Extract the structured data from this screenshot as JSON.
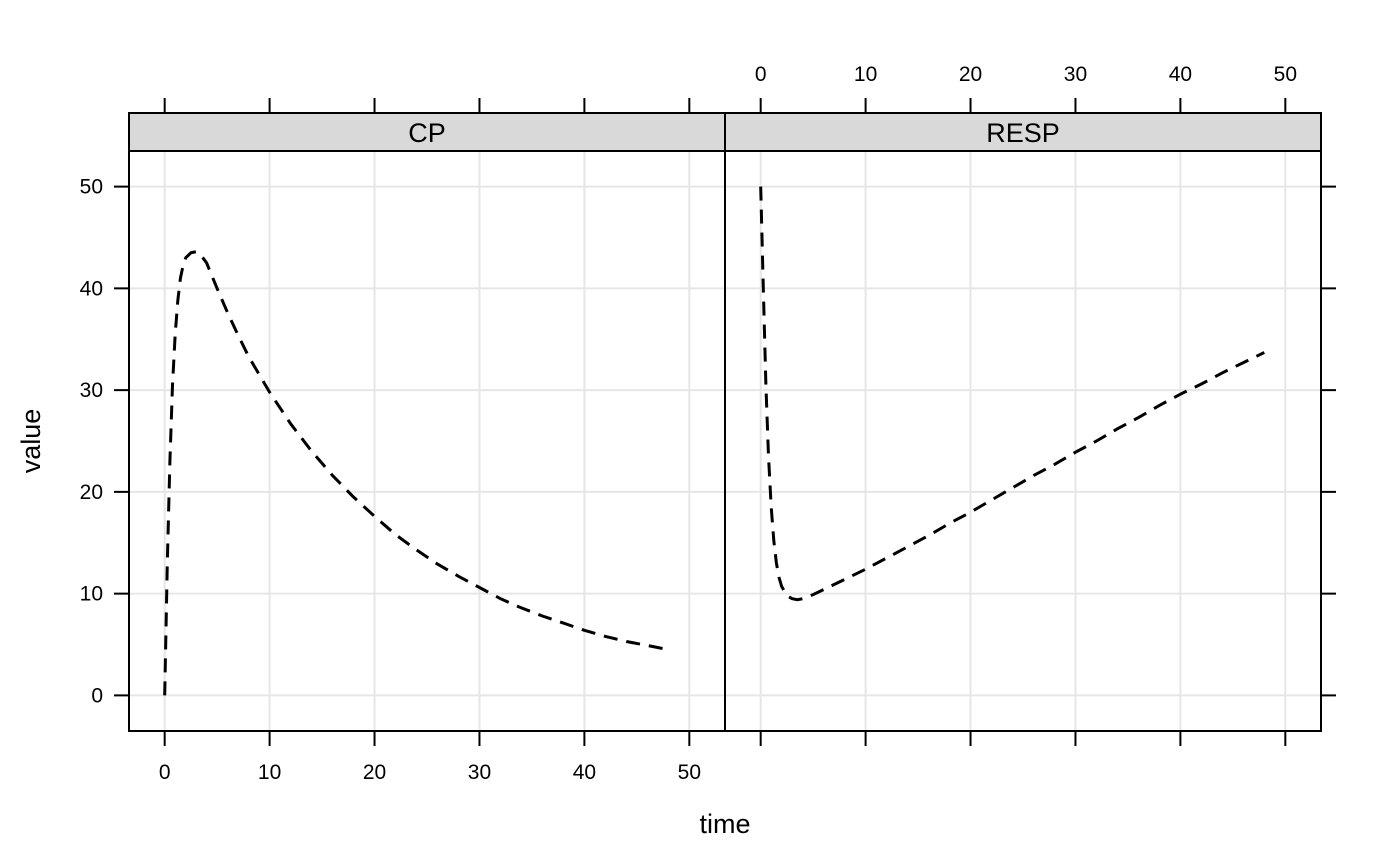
{
  "chart_data": {
    "type": "line",
    "layout": "two-panel trellis",
    "xlabel": "time",
    "ylabel": "value",
    "xlim": [
      -3.4,
      53.4
    ],
    "ylim": [
      -3.5,
      53.5
    ],
    "x_ticks": [
      0,
      10,
      20,
      30,
      40,
      50
    ],
    "y_ticks": [
      0,
      10,
      20,
      30,
      40,
      50
    ],
    "grid": true,
    "line_style": "dashed",
    "panels": [
      {
        "strip": "CP",
        "x": [
          0,
          0.25,
          0.5,
          0.75,
          1,
          1.25,
          1.5,
          1.75,
          2,
          2.5,
          3,
          3.5,
          4,
          5,
          6,
          7,
          8,
          10,
          12,
          14,
          16,
          18,
          20,
          22,
          24,
          26,
          28,
          30,
          32,
          34,
          36,
          38,
          40,
          42,
          44,
          46,
          48
        ],
        "y": [
          0,
          13,
          23,
          30.5,
          35.5,
          38.8,
          41,
          42.2,
          43,
          43.5,
          43.6,
          43.2,
          42.5,
          40,
          37.6,
          35.4,
          33.3,
          29.8,
          26.7,
          24,
          21.6,
          19.5,
          17.6,
          15.8,
          14.3,
          12.9,
          11.7,
          10.6,
          9.5,
          8.6,
          7.8,
          7.1,
          6.4,
          5.8,
          5.3,
          4.9,
          4.5
        ]
      },
      {
        "strip": "RESP",
        "x": [
          0,
          0.25,
          0.5,
          0.75,
          1,
          1.25,
          1.5,
          1.75,
          2,
          2.5,
          3,
          3.5,
          4,
          5,
          6,
          7,
          8,
          10,
          12,
          14,
          16,
          18,
          20,
          22,
          24,
          26,
          28,
          30,
          32,
          34,
          36,
          38,
          40,
          42,
          44,
          46,
          48
        ],
        "y": [
          50,
          40,
          30.5,
          23.5,
          18.5,
          15.2,
          13,
          11.6,
          10.7,
          9.8,
          9.5,
          9.4,
          9.5,
          9.9,
          10.4,
          10.9,
          11.4,
          12.4,
          13.5,
          14.6,
          15.7,
          16.9,
          18,
          19.2,
          20.4,
          21.6,
          22.7,
          23.9,
          25,
          26.2,
          27.3,
          28.5,
          29.6,
          30.6,
          31.7,
          32.7,
          33.7
        ]
      }
    ]
  }
}
